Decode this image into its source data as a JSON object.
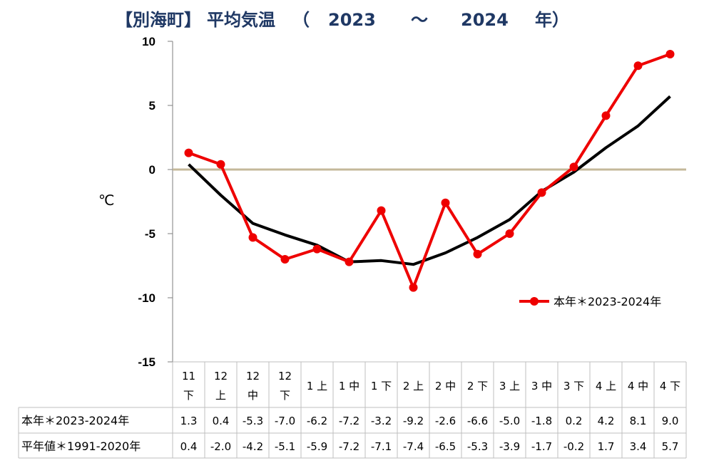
{
  "title": {
    "station": "【別海町】",
    "label": "平均気温",
    "open": "（",
    "year_from": "2023",
    "sep": "～",
    "year_to": "2024",
    "year_unit": "年）"
  },
  "chart_data": {
    "type": "line",
    "ylabel": "℃",
    "ylim": [
      -15,
      10
    ],
    "yticks": [
      10,
      5,
      0,
      -5,
      -10,
      -15
    ],
    "ytick_labels": [
      "10",
      "5",
      "0",
      "-5",
      "-10",
      "-15"
    ],
    "categories": [
      [
        "11",
        "下"
      ],
      [
        "12",
        "上"
      ],
      [
        "12",
        "中"
      ],
      [
        "12",
        "下"
      ],
      [
        "1",
        "上"
      ],
      [
        "1",
        "中"
      ],
      [
        "1",
        "下"
      ],
      [
        "2",
        "上"
      ],
      [
        "2",
        "中"
      ],
      [
        "2",
        "下"
      ],
      [
        "3",
        "上"
      ],
      [
        "3",
        "中"
      ],
      [
        "3",
        "下"
      ],
      [
        "4",
        "上"
      ],
      [
        "4",
        "中"
      ],
      [
        "4",
        "下"
      ]
    ],
    "series": [
      {
        "name": "本年＊2023-2024年",
        "table_label": "本年＊2023-2024年",
        "color": "#ee0000",
        "markers": true,
        "values": [
          1.3,
          0.4,
          -5.3,
          -7.0,
          -6.2,
          -7.2,
          -3.2,
          -9.2,
          -2.6,
          -6.6,
          -5.0,
          -1.8,
          0.2,
          4.2,
          8.1,
          9.0
        ],
        "display": [
          "1.3",
          "0.4",
          "-5.3",
          "-7.0",
          "-6.2",
          "-7.2",
          "-3.2",
          "-9.2",
          "-2.6",
          "-6.6",
          "-5.0",
          "-1.8",
          "0.2",
          "4.2",
          "8.1",
          "9.0"
        ]
      },
      {
        "table_label": "平年値＊1991-2020年",
        "color": "#000000",
        "markers": false,
        "values": [
          0.4,
          -2.0,
          -4.2,
          -5.1,
          -5.9,
          -7.2,
          -7.1,
          -7.4,
          -6.5,
          -5.3,
          -3.9,
          -1.7,
          -0.2,
          1.7,
          3.4,
          5.7
        ],
        "display": [
          "0.4",
          "-2.0",
          "-4.2",
          "-5.1",
          "-5.9",
          "-7.2",
          "-7.1",
          "-7.4",
          "-6.5",
          "-5.3",
          "-3.9",
          "-1.7",
          "-0.2",
          "1.7",
          "3.4",
          "5.7"
        ]
      }
    ],
    "zero_line_color": "#c4b89a",
    "legend": {
      "position": "right",
      "entry": "本年＊2023-2024年"
    },
    "grid": false
  }
}
